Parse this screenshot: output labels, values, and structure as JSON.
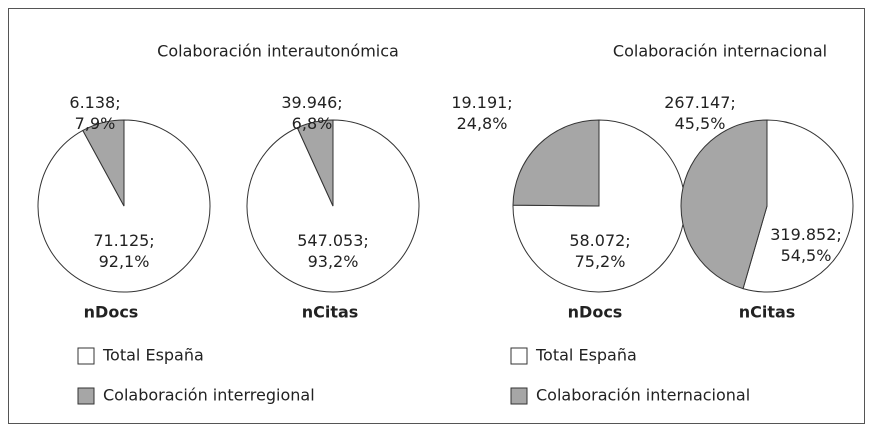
{
  "chart_data": [
    {
      "type": "pie",
      "title": "Colaboración interautonómica",
      "categories": [
        "Total España",
        "Colaboración interregional"
      ],
      "colors": [
        "#ffffff",
        "#a6a6a6"
      ],
      "pies": [
        {
          "label": "nDocs",
          "values": [
            71125,
            6138
          ],
          "value_labels": [
            "71.125; 92,1%",
            "6.138; 7,9%"
          ]
        },
        {
          "label": "nCitas",
          "values": [
            547053,
            39946
          ],
          "value_labels": [
            "547.053; 93,2%",
            "39.946; 6,8%"
          ]
        }
      ]
    },
    {
      "type": "pie",
      "title": "Colaboración internacional",
      "categories": [
        "Total España",
        "Colaboración internacional"
      ],
      "colors": [
        "#ffffff",
        "#a6a6a6"
      ],
      "pies": [
        {
          "label": "nDocs",
          "values": [
            58072,
            19191
          ],
          "value_labels": [
            "58.072; 75,2%",
            "19.191; 24,8%"
          ]
        },
        {
          "label": "nCitas",
          "values": [
            319852,
            267147
          ],
          "value_labels": [
            "319.852; 54,5%",
            "267.147; 45,5%"
          ]
        }
      ]
    }
  ]
}
